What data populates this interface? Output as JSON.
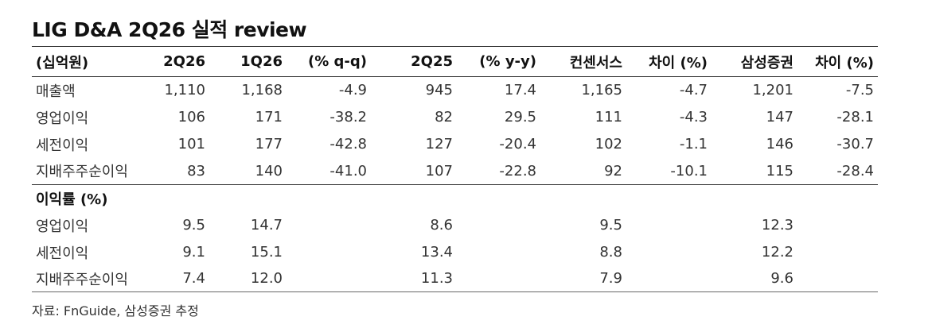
{
  "title": "LIG D&A 2Q26 실적 review",
  "header": [
    "(십억원)",
    "2Q26",
    "1Q26",
    "(% q-q)",
    "2Q25",
    "(% y-y)",
    "컨센서스",
    "차이 (%)",
    "삼성증권",
    "차이 (%)"
  ],
  "rows": [
    [
      "매출액",
      "1,110",
      "1,168",
      "-4.9",
      "945",
      "17.4",
      "1,165",
      "-4.7",
      "1,201",
      "-7.5"
    ],
    [
      "영업이익",
      "106",
      "171",
      "-38.2",
      "82",
      "29.5",
      "111",
      "-4.3",
      "147",
      "-28.1"
    ],
    [
      "세전이익",
      "101",
      "177",
      "-42.8",
      "127",
      "-20.4",
      "102",
      "-1.1",
      "146",
      "-30.7"
    ],
    [
      "지배주주순이익",
      "83",
      "140",
      "-41.0",
      "107",
      "-22.8",
      "92",
      "-10.1",
      "115",
      "-28.4"
    ]
  ],
  "margin_section_label": "이익률 (%)",
  "margin_rows": [
    [
      "영업이익",
      "9.5",
      "14.7",
      "",
      "8.6",
      "",
      "9.5",
      "",
      "12.3",
      ""
    ],
    [
      "세전이익",
      "9.1",
      "15.1",
      "",
      "13.4",
      "",
      "8.8",
      "",
      "12.2",
      ""
    ],
    [
      "지배주주순이익",
      "7.4",
      "12.0",
      "",
      "11.3",
      "",
      "7.9",
      "",
      "9.6",
      ""
    ]
  ],
  "source": "자료: FnGuide, 삼성증권 추정"
}
